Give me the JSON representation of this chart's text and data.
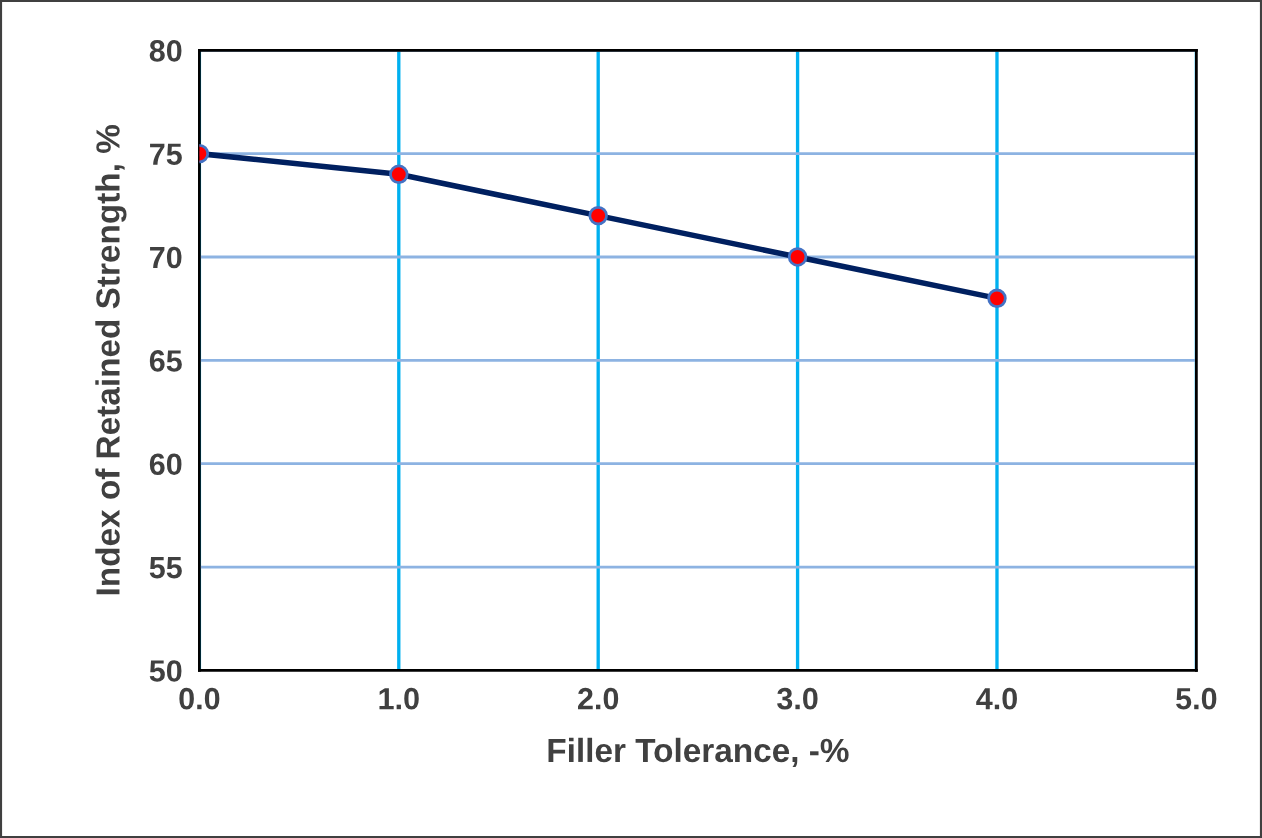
{
  "chart_data": {
    "type": "line",
    "xlabel": "Filler Tolerance, -%",
    "ylabel": "Index of Retained Strength, %",
    "x": [
      0,
      1,
      2,
      3,
      4
    ],
    "series": [
      {
        "color": "#002060",
        "values": [
          75,
          74,
          72,
          70,
          68
        ]
      }
    ],
    "xlim": [
      0,
      5
    ],
    "ylim": [
      50,
      80
    ],
    "xticks": [
      {
        "value": 0,
        "label": "0.0"
      },
      {
        "value": 1,
        "label": "1.0"
      },
      {
        "value": 2,
        "label": "2.0"
      },
      {
        "value": 3,
        "label": "3.0"
      },
      {
        "value": 4,
        "label": "4.0"
      },
      {
        "value": 5,
        "label": "5.0"
      }
    ],
    "yticks": [
      50,
      55,
      60,
      65,
      70,
      75,
      80
    ],
    "grid": true,
    "marker": "circle",
    "line_style": "solid"
  }
}
